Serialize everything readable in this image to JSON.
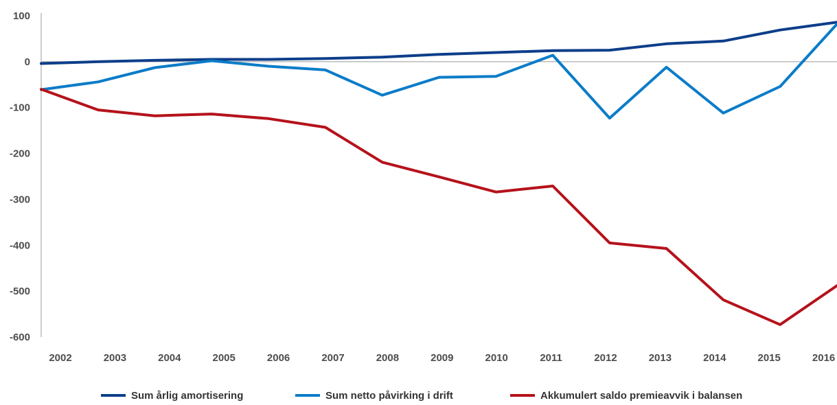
{
  "chart_data": {
    "type": "line",
    "x": [
      "2002",
      "2003",
      "2004",
      "2005",
      "2006",
      "2007",
      "2008",
      "2009",
      "2010",
      "2011",
      "2012",
      "2013",
      "2014",
      "2015",
      "2016"
    ],
    "yticks": [
      "100",
      "0",
      "-100",
      "-200",
      "-300",
      "-400",
      "-500",
      "-600"
    ],
    "ylim": [
      -600,
      100
    ],
    "grid": false,
    "legend_position": "bottom",
    "series": [
      {
        "name": "Sum årlig amortisering",
        "color": "#0d3e8a",
        "values": [
          -4,
          0,
          3,
          5,
          5,
          7,
          10,
          16,
          20,
          24,
          25,
          39,
          45,
          69,
          86
        ]
      },
      {
        "name": "Sum netto påvirking i drift",
        "color": "#0b7cc8",
        "values": [
          -61,
          -44,
          -13,
          2,
          -10,
          -18,
          -73,
          -34,
          -32,
          14,
          -123,
          -12,
          -112,
          -54,
          82
        ]
      },
      {
        "name": "Akkumulert saldo premieavvik i balansen",
        "color": "#b5121b",
        "values": [
          -60,
          -105,
          -118,
          -114,
          -124,
          -143,
          -219,
          -251,
          -284,
          -271,
          -395,
          -407,
          -519,
          -573,
          -488
        ]
      }
    ]
  }
}
